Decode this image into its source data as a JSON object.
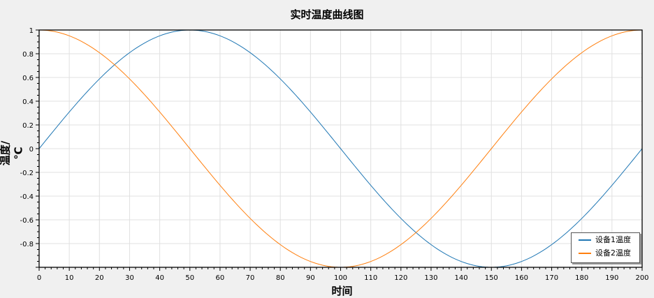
{
  "chart_data": {
    "type": "line",
    "title": "实时温度曲线图",
    "xlabel": "时间",
    "ylabel": "温度/℃",
    "xlim": [
      0,
      200
    ],
    "ylim": [
      -1,
      1
    ],
    "x_ticks": [
      0,
      10,
      20,
      30,
      40,
      50,
      60,
      70,
      80,
      90,
      100,
      110,
      120,
      130,
      140,
      150,
      160,
      170,
      180,
      190,
      200
    ],
    "y_ticks": [
      1,
      0.8,
      0.6,
      0.4,
      0.2,
      0,
      -0.2,
      -0.4,
      -0.6,
      -0.8
    ],
    "grid": true,
    "legend_position": "lower right",
    "series": [
      {
        "name": "设备1温度",
        "color": "#1f77b4",
        "formula": "sin(2*pi*x/200)",
        "x": [
          0,
          25,
          50,
          75,
          100,
          125,
          150,
          175,
          200
        ],
        "values": [
          0,
          0.707,
          1,
          0.707,
          0,
          -0.707,
          -1,
          -0.707,
          0
        ]
      },
      {
        "name": "设备2温度",
        "color": "#ff7f0e",
        "formula": "cos(2*pi*x/200)",
        "x": [
          0,
          25,
          50,
          75,
          100,
          125,
          150,
          175,
          200
        ],
        "values": [
          1,
          0.707,
          0,
          -0.707,
          -1,
          -0.707,
          0,
          0.707,
          1
        ]
      }
    ]
  }
}
